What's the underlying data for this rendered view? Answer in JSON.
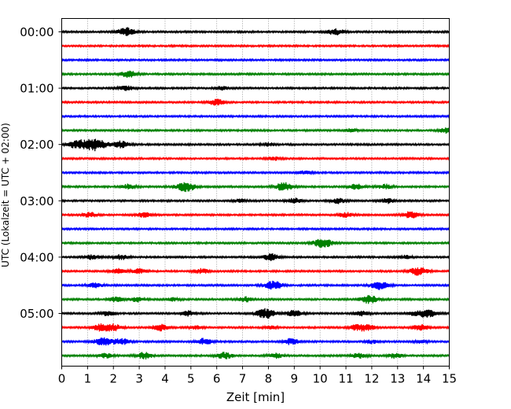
{
  "chart_data": {
    "type": "line",
    "xlabel": "Zeit  [min]",
    "ylabel": "UTC (Lokalzeit = UTC + 02:00)",
    "xlim": [
      0,
      15
    ],
    "x_ticks": [
      0,
      1,
      2,
      3,
      4,
      5,
      6,
      7,
      8,
      9,
      10,
      11,
      12,
      13,
      14,
      15
    ],
    "y_ticks": [
      "00:00",
      "01:00",
      "02:00",
      "03:00",
      "04:00",
      "05:00"
    ],
    "grid": "vertical dotted lines at each minute",
    "trace_colors": [
      "#000000",
      "#ff0000",
      "#0000ff",
      "#008000"
    ],
    "trace_interval_min": 15,
    "traces": [
      {
        "start": "00:00",
        "color": "#000000",
        "bursts": [
          {
            "x": 2.5,
            "amp": 5
          },
          {
            "x": 10.6,
            "amp": 4
          }
        ]
      },
      {
        "start": "00:15",
        "color": "#ff0000",
        "bursts": []
      },
      {
        "start": "00:30",
        "color": "#0000ff",
        "bursts": []
      },
      {
        "start": "00:45",
        "color": "#008000",
        "bursts": [
          {
            "x": 2.6,
            "amp": 4
          }
        ]
      },
      {
        "start": "01:00",
        "color": "#000000",
        "bursts": [
          {
            "x": 2.5,
            "amp": 3
          },
          {
            "x": 6.2,
            "amp": 2
          }
        ]
      },
      {
        "start": "01:15",
        "color": "#ff0000",
        "bursts": [
          {
            "x": 6.0,
            "amp": 4
          }
        ]
      },
      {
        "start": "01:30",
        "color": "#0000ff",
        "bursts": []
      },
      {
        "start": "01:45",
        "color": "#008000",
        "bursts": [
          {
            "x": 11.2,
            "amp": 2
          },
          {
            "x": 14.9,
            "amp": 3
          }
        ]
      },
      {
        "start": "02:00",
        "color": "#000000",
        "bursts": [
          {
            "x": 0.6,
            "amp": 5
          },
          {
            "x": 1.3,
            "amp": 8
          },
          {
            "x": 2.3,
            "amp": 4
          },
          {
            "x": 8.0,
            "amp": 2
          }
        ]
      },
      {
        "start": "02:15",
        "color": "#ff0000",
        "bursts": [
          {
            "x": 8.2,
            "amp": 2
          }
        ]
      },
      {
        "start": "02:30",
        "color": "#0000ff",
        "bursts": [
          {
            "x": 9.4,
            "amp": 2
          }
        ]
      },
      {
        "start": "02:45",
        "color": "#008000",
        "bursts": [
          {
            "x": 2.6,
            "amp": 3
          },
          {
            "x": 4.8,
            "amp": 6
          },
          {
            "x": 8.6,
            "amp": 5
          },
          {
            "x": 11.4,
            "amp": 3
          },
          {
            "x": 12.5,
            "amp": 3
          }
        ]
      },
      {
        "start": "03:00",
        "color": "#000000",
        "bursts": [
          {
            "x": 6.9,
            "amp": 2
          },
          {
            "x": 9.0,
            "amp": 3
          },
          {
            "x": 10.7,
            "amp": 3
          },
          {
            "x": 12.6,
            "amp": 3
          }
        ]
      },
      {
        "start": "03:15",
        "color": "#ff0000",
        "bursts": [
          {
            "x": 1.1,
            "amp": 3
          },
          {
            "x": 3.2,
            "amp": 3
          },
          {
            "x": 11.0,
            "amp": 3
          },
          {
            "x": 13.5,
            "amp": 4
          }
        ]
      },
      {
        "start": "03:30",
        "color": "#0000ff",
        "bursts": []
      },
      {
        "start": "03:45",
        "color": "#008000",
        "bursts": [
          {
            "x": 10.1,
            "amp": 6
          }
        ]
      },
      {
        "start": "04:00",
        "color": "#000000",
        "bursts": [
          {
            "x": 1.2,
            "amp": 3
          },
          {
            "x": 2.3,
            "amp": 3
          },
          {
            "x": 8.1,
            "amp": 4
          },
          {
            "x": 13.3,
            "amp": 2
          }
        ]
      },
      {
        "start": "04:15",
        "color": "#ff0000",
        "bursts": [
          {
            "x": 2.2,
            "amp": 3
          },
          {
            "x": 3.0,
            "amp": 3
          },
          {
            "x": 5.4,
            "amp": 3
          },
          {
            "x": 13.8,
            "amp": 5
          }
        ]
      },
      {
        "start": "04:30",
        "color": "#0000ff",
        "bursts": [
          {
            "x": 1.3,
            "amp": 3
          },
          {
            "x": 8.2,
            "amp": 5
          },
          {
            "x": 12.3,
            "amp": 5
          }
        ]
      },
      {
        "start": "04:45",
        "color": "#008000",
        "bursts": [
          {
            "x": 2.1,
            "amp": 3
          },
          {
            "x": 2.9,
            "amp": 3
          },
          {
            "x": 4.3,
            "amp": 2
          },
          {
            "x": 7.1,
            "amp": 3
          },
          {
            "x": 11.9,
            "amp": 5
          }
        ]
      },
      {
        "start": "05:00",
        "color": "#000000",
        "bursts": [
          {
            "x": 1.8,
            "amp": 3
          },
          {
            "x": 4.9,
            "amp": 3
          },
          {
            "x": 7.9,
            "amp": 6
          },
          {
            "x": 9.0,
            "amp": 4
          },
          {
            "x": 11.6,
            "amp": 3
          },
          {
            "x": 13.7,
            "amp": 3
          },
          {
            "x": 14.2,
            "amp": 5
          }
        ]
      },
      {
        "start": "05:15",
        "color": "#ff0000",
        "bursts": [
          {
            "x": 1.5,
            "amp": 4
          },
          {
            "x": 2.0,
            "amp": 4
          },
          {
            "x": 3.8,
            "amp": 4
          },
          {
            "x": 5.2,
            "amp": 2
          },
          {
            "x": 8.1,
            "amp": 2
          },
          {
            "x": 11.4,
            "amp": 3
          },
          {
            "x": 11.8,
            "amp": 4
          },
          {
            "x": 13.9,
            "amp": 4
          }
        ]
      },
      {
        "start": "05:30",
        "color": "#0000ff",
        "bursts": [
          {
            "x": 1.6,
            "amp": 5
          },
          {
            "x": 2.3,
            "amp": 4
          },
          {
            "x": 5.5,
            "amp": 4
          },
          {
            "x": 8.9,
            "amp": 4
          },
          {
            "x": 12.0,
            "amp": 2
          },
          {
            "x": 13.9,
            "amp": 2
          }
        ]
      },
      {
        "start": "05:45",
        "color": "#008000",
        "bursts": [
          {
            "x": 1.7,
            "amp": 3
          },
          {
            "x": 3.2,
            "amp": 4
          },
          {
            "x": 6.3,
            "amp": 4
          },
          {
            "x": 8.3,
            "amp": 3
          },
          {
            "x": 11.5,
            "amp": 3
          },
          {
            "x": 12.9,
            "amp": 3
          }
        ]
      }
    ]
  }
}
